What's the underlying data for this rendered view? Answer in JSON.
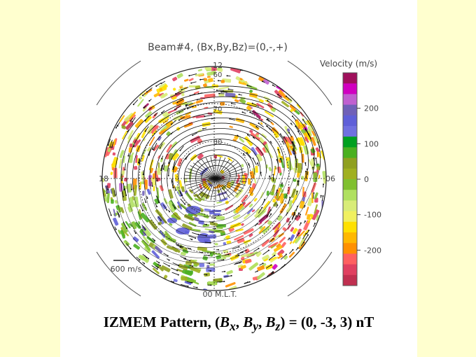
{
  "chart_data": {
    "type": "polar-map",
    "title": "Beam#4, (Bx,By,Bz)=(0,-,+)",
    "mlt_labels": {
      "top": "12",
      "left": "18",
      "right": "06",
      "bottom": "00 M.L.T."
    },
    "latitude_labels": [
      "60",
      "70",
      "80"
    ],
    "colorbar": {
      "title": "Velocity (m/s)",
      "ticks": [
        "200",
        "100",
        "0",
        "-100",
        "-200"
      ],
      "tick_values": [
        200,
        100,
        0,
        -100,
        -200
      ],
      "range": [
        -300,
        300
      ],
      "colors": [
        "#a0105c",
        "#d000c0",
        "#c060d0",
        "#7060b8",
        "#5f5fd8",
        "#7070e0",
        "#00a020",
        "#4ab020",
        "#8fa020",
        "#a0b020",
        "#80c030",
        "#b0e060",
        "#d8ec78",
        "#f0f060",
        "#ffe000",
        "#ffb800",
        "#ff9000",
        "#ff6060",
        "#e04060",
        "#c03050"
      ]
    },
    "scale_vector_label": "600 m/s"
  },
  "caption": {
    "prefix": "IZMEM Pattern, (",
    "bx": "B",
    "bx_sub": "x",
    "sep1": ", ",
    "by": "B",
    "by_sub": "y",
    "sep2": ", ",
    "bz": "B",
    "bz_sub": "z",
    "suffix": ") = (0, -3, 3) nT"
  }
}
